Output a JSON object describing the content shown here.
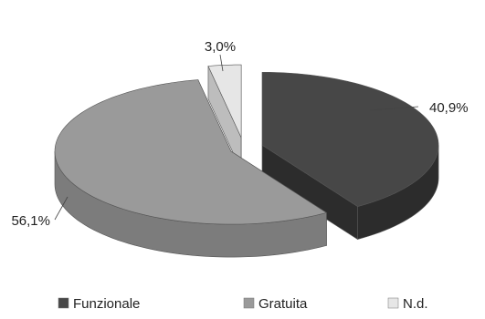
{
  "chart_data": {
    "type": "pie",
    "style": "3d-exploded",
    "categories": [
      "Funzionale",
      "Gratuita",
      "N.d."
    ],
    "values": [
      40.9,
      56.1,
      3.0
    ],
    "labels": [
      "40,9%",
      "56,1%",
      "3,0%"
    ],
    "colors": {
      "Funzionale": {
        "top": "#474747",
        "side": "#2c2c2c"
      },
      "Gratuita": {
        "top": "#9a9a9a",
        "side": "#7c7c7c"
      },
      "N.d.": {
        "top": "#e6e6e6",
        "side": "#bdbdbd"
      }
    },
    "legend_position": "bottom"
  }
}
